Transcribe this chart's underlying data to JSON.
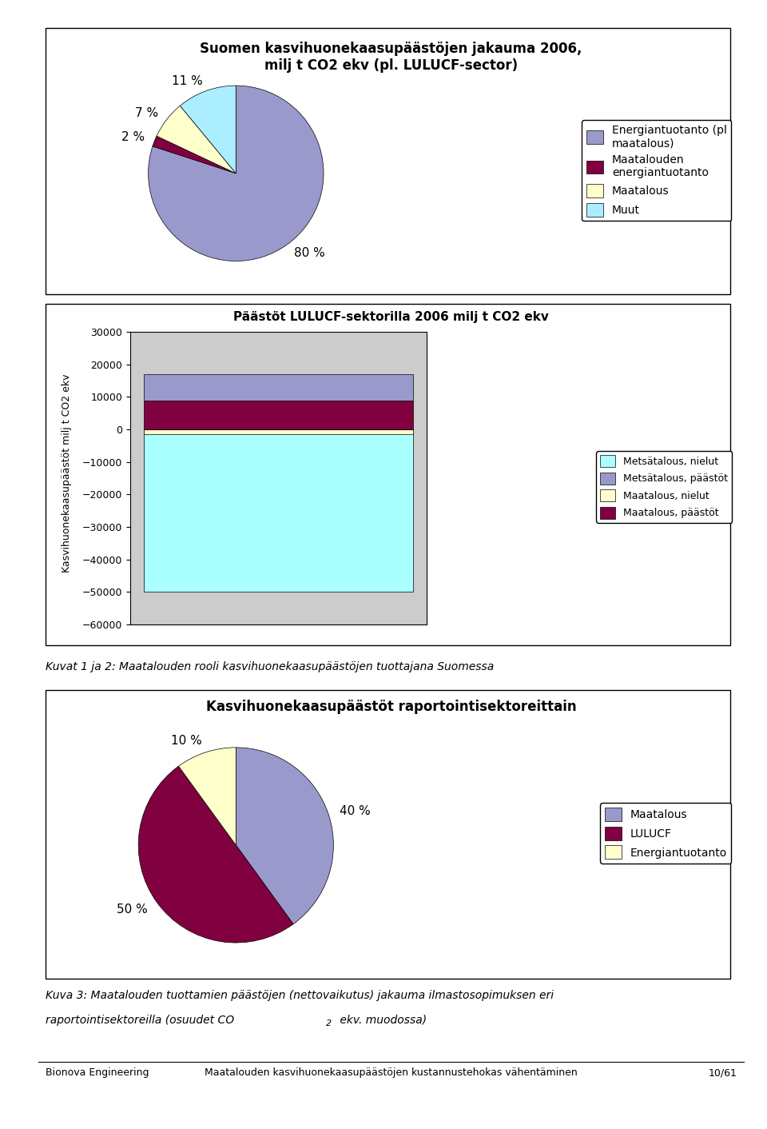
{
  "pie1_title": "Suomen kasvihuonekaasupäästöjen jakauma 2006,\nmilj t CO2 ekv (pl. LULUCF-sector)",
  "pie1_values": [
    80,
    2,
    7,
    11
  ],
  "pie1_labels": [
    "80 %",
    "2 %",
    "7 %",
    "11 %"
  ],
  "pie1_colors": [
    "#9999cc",
    "#800040",
    "#ffffcc",
    "#aaeeff"
  ],
  "pie1_legend": [
    "Energiantuotanto (pl\nmaatalous)",
    "Maatalouden\nenergiantuotanto",
    "Maatalous",
    "Muut"
  ],
  "pie1_legend_colors": [
    "#9999cc",
    "#800040",
    "#ffffcc",
    "#aaeeff"
  ],
  "pie1_startangle": 90,
  "bar_title": "Päästöt LULUCF-sektorilla 2006 milj t CO2 ekv",
  "bar_ylabel": "Kasvihuonekaasupäästöt milj t CO2 ekv",
  "bar_metsatalous_nielut": -50000,
  "bar_metsatalous_paastot": 8000,
  "bar_maatalous_nielut": -1500,
  "bar_maatalous_paastot": 9000,
  "bar_ylim": [
    -60000,
    30000
  ],
  "bar_yticks": [
    30000,
    20000,
    10000,
    0,
    -10000,
    -20000,
    -30000,
    -40000,
    -50000,
    -60000
  ],
  "bar_colors_nielut_mets": "#aaffff",
  "bar_colors_paastot_mets": "#9999cc",
  "bar_colors_nielut_maat": "#ffffcc",
  "bar_colors_paastot_maat": "#800040",
  "bar_bg_color": "#cccccc",
  "bar_legend": [
    "Metsätalous, nielut",
    "Metsätalous, päästöt",
    "Maatalous, nielut",
    "Maatalous, päästöt"
  ],
  "caption1": "Kuvat 1 ja 2: Maatalouden rooli kasvihuonekaasupäästöjen tuottajana Suomessa",
  "pie2_title": "Kasvihuonekaasupäästöt raportointisektoreittain",
  "pie2_values": [
    40,
    50,
    10
  ],
  "pie2_labels": [
    "40 %",
    "50 %",
    "10 %"
  ],
  "pie2_colors": [
    "#9999cc",
    "#800040",
    "#ffffcc"
  ],
  "pie2_legend": [
    "Maatalous",
    "LULUCF",
    "Energiantuotanto"
  ],
  "pie2_startangle": 90,
  "caption2_line1": "Kuva 3: Maatalouden tuottamien päästöjen (nettovaikutus) jakauma ilmastosopimuksen eri",
  "caption2_line2": "raportointisektoreilla (osuudet CO",
  "caption2_sub": "2",
  "caption2_line2b": " ekv. muodossa)",
  "footer_left": "Bionova Engineering",
  "footer_center": "Maatalouden kasvihuonekaasupäästöjen kustannustehokas vähentäminen",
  "footer_right": "10/61",
  "bg_color": "#ffffff"
}
